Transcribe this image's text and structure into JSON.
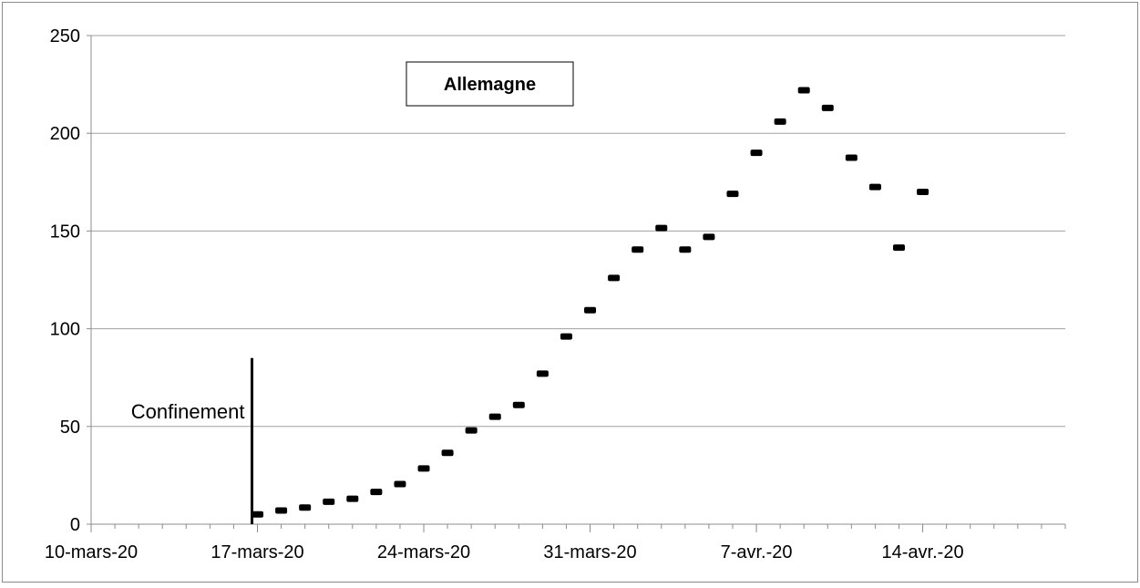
{
  "chart_data": {
    "type": "scatter",
    "title": "Allemagne",
    "xlabel": "",
    "ylabel": "",
    "x_ticks": [
      "10-mars-20",
      "17-mars-20",
      "24-mars-20",
      "31-mars-20",
      "7-avr.-20",
      "14-avr.-20"
    ],
    "xlim": [
      "2020-03-10",
      "2020-04-20"
    ],
    "ylim": [
      0,
      250
    ],
    "y_ticks": [
      0,
      50,
      100,
      150,
      200,
      250
    ],
    "grid": "horizontal",
    "legend": "none",
    "marker": "dash",
    "annotation": {
      "label": "Confinement",
      "x": "2020-03-17",
      "y_top": 85
    },
    "points": [
      {
        "x": "2020-03-17",
        "y": 5
      },
      {
        "x": "2020-03-18",
        "y": 7
      },
      {
        "x": "2020-03-19",
        "y": 8.5
      },
      {
        "x": "2020-03-20",
        "y": 11.5
      },
      {
        "x": "2020-03-21",
        "y": 13
      },
      {
        "x": "2020-03-22",
        "y": 16.5
      },
      {
        "x": "2020-03-23",
        "y": 20.5
      },
      {
        "x": "2020-03-24",
        "y": 28.5
      },
      {
        "x": "2020-03-25",
        "y": 36.5
      },
      {
        "x": "2020-03-26",
        "y": 48
      },
      {
        "x": "2020-03-27",
        "y": 55
      },
      {
        "x": "2020-03-28",
        "y": 61
      },
      {
        "x": "2020-03-29",
        "y": 77
      },
      {
        "x": "2020-03-30",
        "y": 96
      },
      {
        "x": "2020-03-31",
        "y": 109.5
      },
      {
        "x": "2020-04-01",
        "y": 126
      },
      {
        "x": "2020-04-02",
        "y": 140.5
      },
      {
        "x": "2020-04-03",
        "y": 151.5
      },
      {
        "x": "2020-04-04",
        "y": 140.5
      },
      {
        "x": "2020-04-05",
        "y": 147
      },
      {
        "x": "2020-04-06",
        "y": 169
      },
      {
        "x": "2020-04-07",
        "y": 190
      },
      {
        "x": "2020-04-08",
        "y": 206
      },
      {
        "x": "2020-04-09",
        "y": 222
      },
      {
        "x": "2020-04-10",
        "y": 213
      },
      {
        "x": "2020-04-11",
        "y": 187.5
      },
      {
        "x": "2020-04-12",
        "y": 172.5
      },
      {
        "x": "2020-04-13",
        "y": 141.5
      },
      {
        "x": "2020-04-14",
        "y": 170
      }
    ],
    "colors": {
      "marker": "#000000",
      "grid": "#a0a0a0",
      "axis": "#8c8c8c",
      "text": "#000000",
      "border": "#8c8c8c"
    }
  }
}
